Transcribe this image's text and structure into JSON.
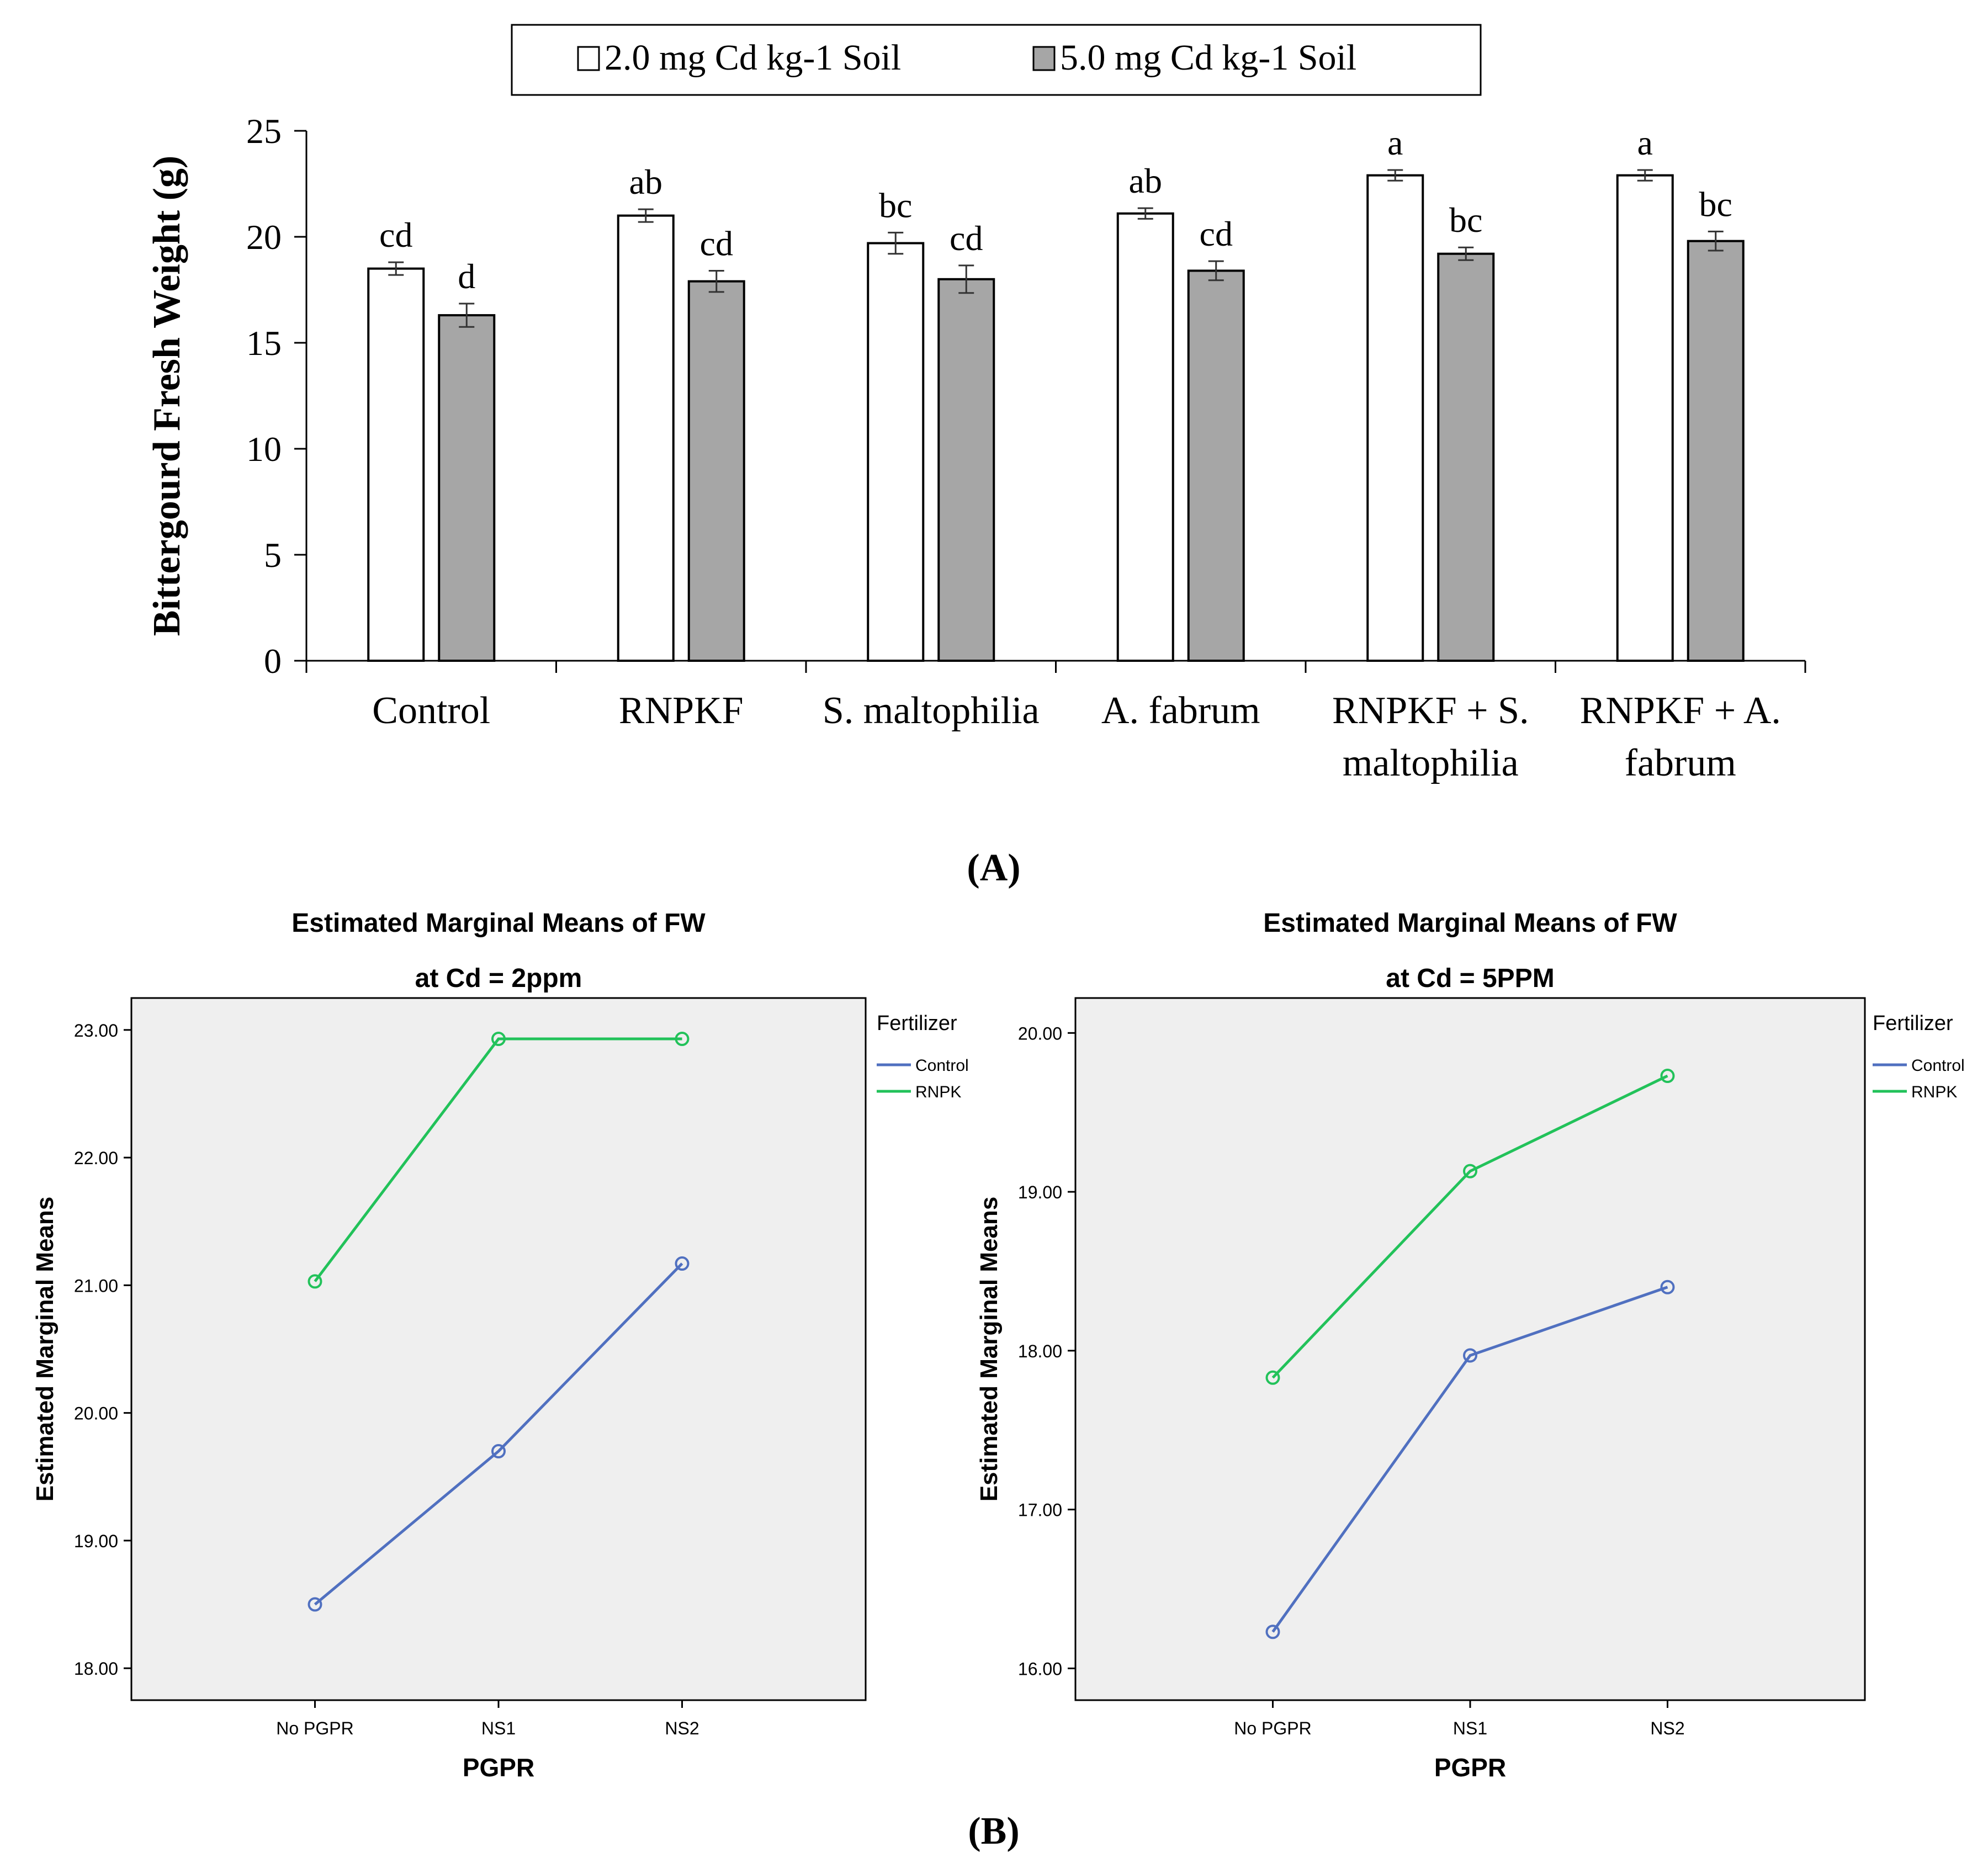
{
  "panel_labels": {
    "a": "(A)",
    "b": "(B)"
  },
  "chart_data": [
    {
      "type": "bar",
      "panel": "(A)",
      "ylabel": "Bittergourd  Fresh Weight (g)",
      "ylim": [
        0,
        25
      ],
      "yticks": [
        0,
        5,
        10,
        15,
        20,
        25
      ],
      "legend_position": "top",
      "categories": [
        [
          "Control"
        ],
        [
          "RNPKF"
        ],
        [
          "S. maltophilia"
        ],
        [
          "A. fabrum"
        ],
        [
          "RNPKF + S.",
          "maltophilia"
        ],
        [
          "RNPKF + A.",
          "fabrum"
        ]
      ],
      "series": [
        {
          "name": "2.0 mg Cd kg-1 Soil",
          "color": "#ffffff",
          "values": [
            18.5,
            21.0,
            19.7,
            21.1,
            22.9,
            22.9
          ],
          "errors": [
            0.3,
            0.3,
            0.5,
            0.25,
            0.25,
            0.25
          ],
          "labels": [
            "cd",
            "ab",
            "bc",
            "ab",
            "a",
            "a"
          ]
        },
        {
          "name": "5.0 mg Cd kg-1 Soil",
          "color": "#a6a6a6",
          "values": [
            16.3,
            17.9,
            18.0,
            18.4,
            19.2,
            19.8
          ],
          "errors": [
            0.55,
            0.5,
            0.65,
            0.45,
            0.3,
            0.45
          ],
          "labels": [
            "d",
            "cd",
            "cd",
            "cd",
            "bc",
            "bc"
          ]
        }
      ]
    },
    {
      "type": "line",
      "panel": "(B)",
      "title": [
        "Estimated Marginal Means of FW",
        "at Cd = 2ppm"
      ],
      "xlabel": "PGPR",
      "ylabel": "Estimated Marginal Means",
      "x": [
        "No PGPR",
        "NS1",
        "NS2"
      ],
      "ylim": [
        17.75,
        23.25
      ],
      "yticks": [
        "18.00",
        "19.00",
        "20.00",
        "21.00",
        "22.00",
        "23.00"
      ],
      "legend_title": "Fertilizer",
      "legend_position": "right",
      "plot_background": "#efefef",
      "series": [
        {
          "name": "Control",
          "color": "#5070c0",
          "values": [
            18.5,
            19.7,
            21.17
          ]
        },
        {
          "name": "RNPK",
          "color": "#22c25a",
          "values": [
            21.03,
            22.93,
            22.93
          ]
        }
      ]
    },
    {
      "type": "line",
      "panel": "(B)",
      "title": [
        "Estimated Marginal Means of FW",
        "at Cd = 5PPM"
      ],
      "xlabel": "PGPR",
      "ylabel": "Estimated Marginal Means",
      "x": [
        "No PGPR",
        "NS1",
        "NS2"
      ],
      "ylim": [
        15.8,
        20.22
      ],
      "yticks": [
        "16.00",
        "17.00",
        "18.00",
        "19.00",
        "20.00"
      ],
      "legend_title": "Fertilizer",
      "legend_position": "right",
      "plot_background": "#efefef",
      "series": [
        {
          "name": "Control",
          "color": "#5070c0",
          "values": [
            16.23,
            17.97,
            18.4
          ]
        },
        {
          "name": "RNPK",
          "color": "#22c25a",
          "values": [
            17.83,
            19.13,
            19.73
          ]
        }
      ]
    }
  ]
}
